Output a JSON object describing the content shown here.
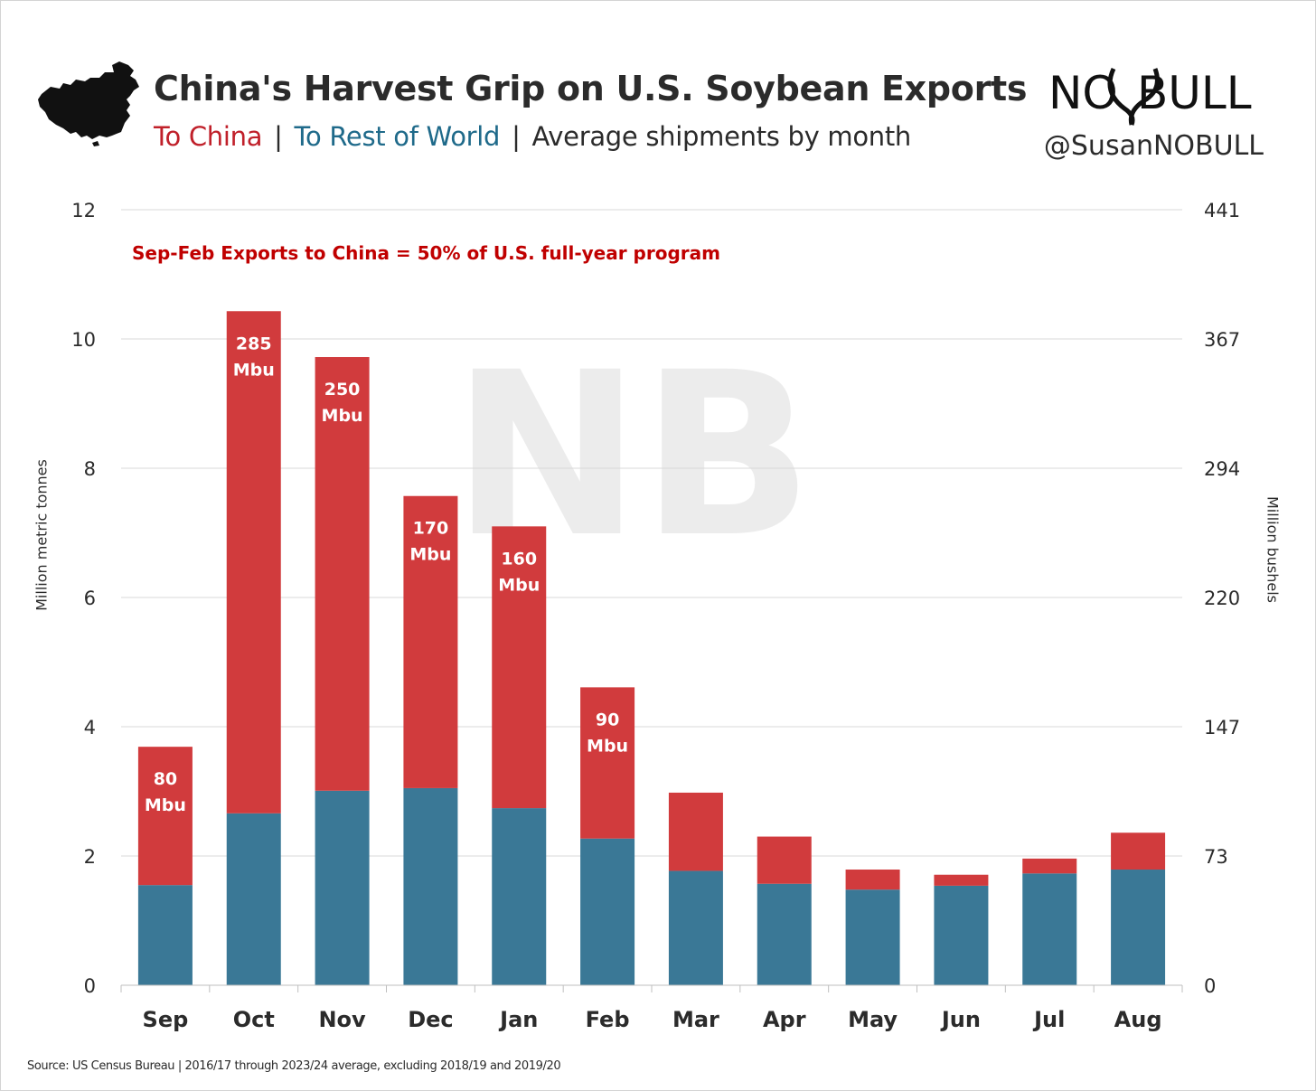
{
  "header": {
    "title": "China's Harvest Grip on U.S. Soybean Exports",
    "subtitle_china": "To China",
    "subtitle_sep1": "|",
    "subtitle_row": "To Rest of World",
    "subtitle_sep2": "|",
    "subtitle_rest": "Average shipments by month",
    "handle": "@SusanNOBULL"
  },
  "logo": {
    "text": "NOBULL",
    "icon": "bull-horns-logo"
  },
  "watermark": {
    "text": "NB"
  },
  "source": "Source: US Census Bureau | 2016/17 through 2023/24 average, excluding 2018/19 and 2019/20",
  "colors": {
    "china": "#d13b3d",
    "rest_of_world": "#3a7896",
    "annotation": "#c00000",
    "grid": "#d9d9d9"
  },
  "chart_data": {
    "type": "bar",
    "stacked": true,
    "title": "China's Harvest Grip on U.S. Soybean Exports",
    "categories": [
      "Sep",
      "Oct",
      "Nov",
      "Dec",
      "Jan",
      "Feb",
      "Mar",
      "Apr",
      "May",
      "Jun",
      "Jul",
      "Aug"
    ],
    "series": [
      {
        "name": "To Rest of World",
        "color": "#3a7896",
        "values": [
          1.55,
          2.66,
          3.01,
          3.05,
          2.74,
          2.27,
          1.77,
          1.57,
          1.48,
          1.54,
          1.73,
          1.79
        ]
      },
      {
        "name": "To China",
        "color": "#d13b3d",
        "values": [
          2.14,
          7.77,
          6.71,
          4.52,
          4.36,
          2.34,
          1.21,
          0.73,
          0.31,
          0.17,
          0.23,
          0.57
        ]
      }
    ],
    "data_labels": [
      "80\nMbu",
      "285\nMbu",
      "250\nMbu",
      "170\nMbu",
      "160\nMbu",
      "90\nMbu",
      "",
      "",
      "",
      "",
      "",
      ""
    ],
    "ylabel": "Million metric tonnes",
    "ylim": [
      0,
      12
    ],
    "yticks": [
      "0",
      "2",
      "4",
      "6",
      "8",
      "10",
      "12"
    ],
    "y2label": "Million bushels",
    "y2ticks": [
      "0",
      "73",
      "147",
      "220",
      "294",
      "367",
      "441"
    ],
    "annotation": "Sep-Feb Exports to China = 50% of U.S. full-year program",
    "grid": true,
    "legend": "subtitle"
  }
}
